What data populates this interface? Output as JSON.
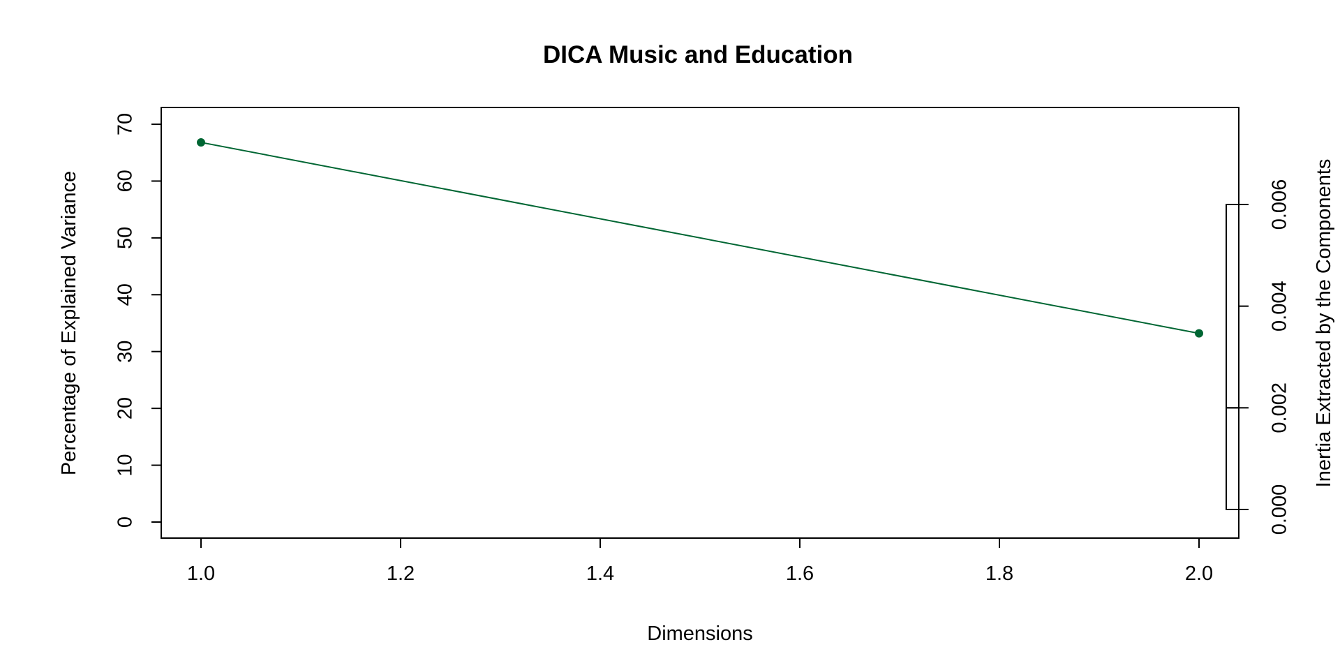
{
  "chart_data": {
    "type": "line",
    "title": "DICA Music and Education",
    "xlabel": "Dimensions",
    "ylabel": "Percentage of Explained Variance",
    "y2label": "Inertia Extracted by the Components",
    "xlim": [
      1.0,
      2.0
    ],
    "ylim": [
      0,
      70
    ],
    "y2lim": [
      0.0,
      0.006
    ],
    "x_ticks": [
      "1.0",
      "1.2",
      "1.4",
      "1.6",
      "1.8",
      "2.0"
    ],
    "y_ticks": [
      "0",
      "10",
      "20",
      "30",
      "40",
      "50",
      "60",
      "70"
    ],
    "y2_ticks": [
      "0.000",
      "0.002",
      "0.004",
      "0.006"
    ],
    "grid": false,
    "series": [
      {
        "x": [
          1,
          2
        ],
        "values": [
          66.8,
          33.2
        ]
      }
    ],
    "inertia_bars": [
      0.002,
      0.004
    ],
    "color": "#006633"
  }
}
